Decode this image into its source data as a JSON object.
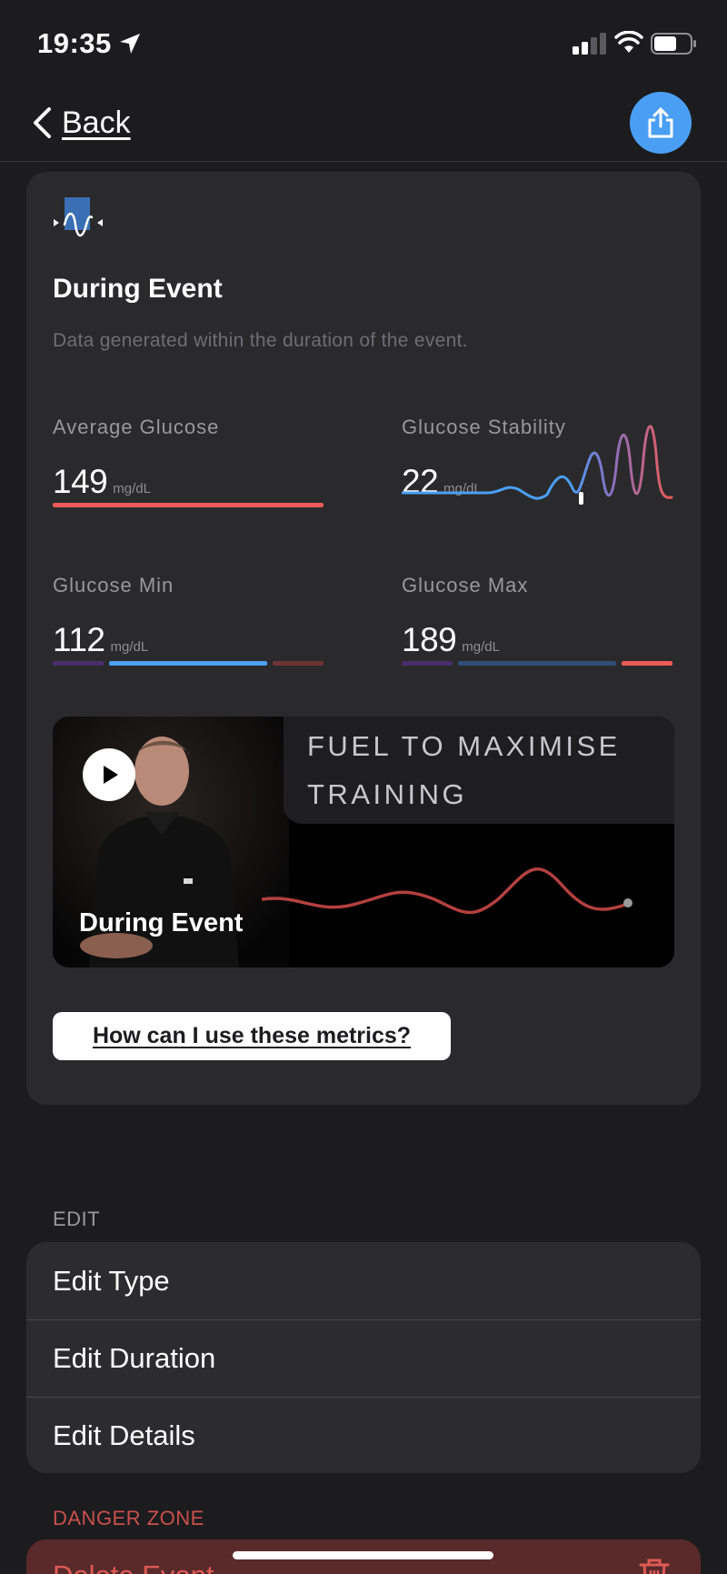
{
  "status_bar": {
    "time": "19:35",
    "icons": [
      "location-arrow-icon",
      "cellular-signal-icon",
      "wifi-icon",
      "battery-icon"
    ]
  },
  "nav": {
    "back_label": "Back",
    "share_icon": "share-icon",
    "share_color": "#4a9ff5"
  },
  "card": {
    "icon": "glucose-wave-icon",
    "title": "During Event",
    "subtitle": "Data generated within the duration of the event.",
    "metrics": {
      "average": {
        "label": "Average Glucose",
        "value": "149",
        "unit": "mg/dL",
        "bar_color": "#ec5b57"
      },
      "stability": {
        "label": "Glucose Stability",
        "value": "22",
        "unit": "mg/dL"
      },
      "min": {
        "label": "Glucose Min",
        "value": "112",
        "unit": "mg/dL",
        "highlight_color": "#4a9ff5"
      },
      "max": {
        "label": "Glucose Max",
        "value": "189",
        "unit": "mg/dL",
        "highlight_color": "#ec5b57"
      }
    },
    "video": {
      "heading": "FUEL TO MAXIMISE TRAINING",
      "label": "During Event",
      "play_icon": "play-icon"
    },
    "help_button_label": "How can I use these metrics?"
  },
  "edit_section": {
    "header": "EDIT",
    "items": [
      "Edit Type",
      "Edit Duration",
      "Edit Details"
    ]
  },
  "danger_section": {
    "header": "DANGER ZONE",
    "delete_label": "Delete Event",
    "delete_icon": "trash-icon",
    "accent_color": "#e05a55"
  }
}
